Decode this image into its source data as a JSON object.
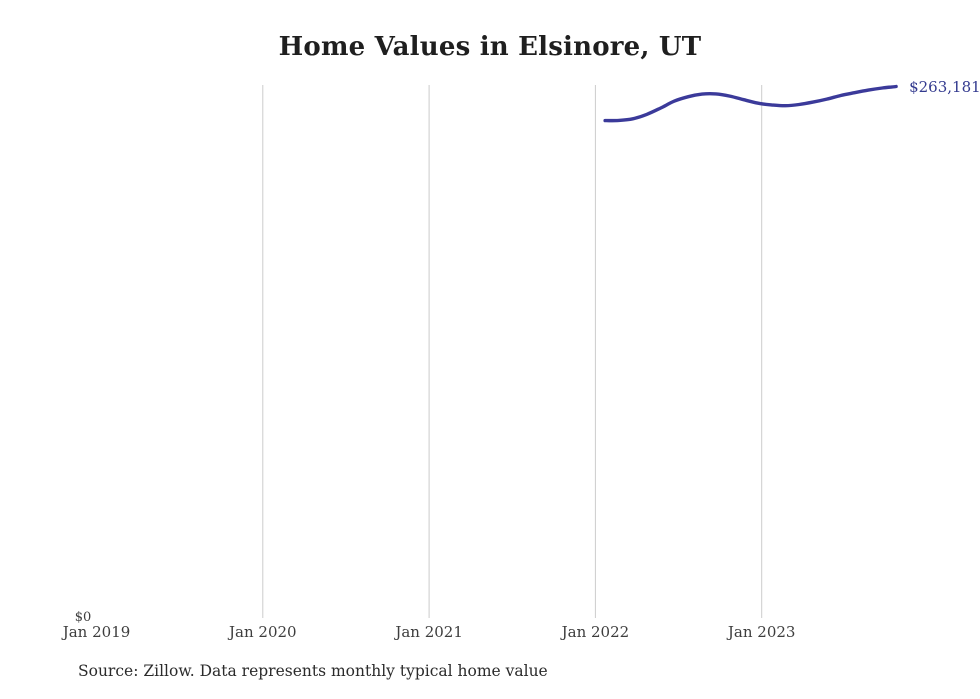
{
  "title": "Home Values in Elsinore, UT",
  "source_note": "Source: Zillow. Data represents monthly typical home value",
  "yaxis": {
    "zero_label": "$0"
  },
  "colors": {
    "line": "#3b3a9a",
    "end_label": "#333a8f",
    "gridline": "#cccccc",
    "title_text": "#1f1f1f",
    "tick_text": "#3d3d3d",
    "background": "#ffffff"
  },
  "chart_data": {
    "type": "line",
    "title": "Home Values in Elsinore, UT",
    "xlabel": "",
    "ylabel": "",
    "ylim": [
      0,
      263181
    ],
    "grid": "vertical-only",
    "legend": "none",
    "end_label": "$263,181",
    "x_ticks": [
      {
        "label": "Jan 2019",
        "grid": false
      },
      {
        "label": "Jan 2020",
        "grid": true
      },
      {
        "label": "Jan 2021",
        "grid": true
      },
      {
        "label": "Jan 2022",
        "grid": true
      },
      {
        "label": "Jan 2023",
        "grid": true
      }
    ],
    "series": [
      {
        "name": "Typical home value (monthly)",
        "points": [
          {
            "date": "2022-01",
            "value": 246200
          },
          {
            "date": "2022-02",
            "value": 246300
          },
          {
            "date": "2022-03",
            "value": 247100
          },
          {
            "date": "2022-04",
            "value": 249300
          },
          {
            "date": "2022-05",
            "value": 252400
          },
          {
            "date": "2022-06",
            "value": 255900
          },
          {
            "date": "2022-07",
            "value": 258100
          },
          {
            "date": "2022-08",
            "value": 259400
          },
          {
            "date": "2022-09",
            "value": 259500
          },
          {
            "date": "2022-10",
            "value": 258400
          },
          {
            "date": "2022-11",
            "value": 256600
          },
          {
            "date": "2022-12",
            "value": 254900
          },
          {
            "date": "2023-01",
            "value": 254000
          },
          {
            "date": "2023-02",
            "value": 253600
          },
          {
            "date": "2023-03",
            "value": 254200
          },
          {
            "date": "2023-04",
            "value": 255400
          },
          {
            "date": "2023-05",
            "value": 256900
          },
          {
            "date": "2023-06",
            "value": 258700
          },
          {
            "date": "2023-07",
            "value": 260100
          },
          {
            "date": "2023-08",
            "value": 261400
          },
          {
            "date": "2023-09",
            "value": 262400
          },
          {
            "date": "2023-10",
            "value": 263181
          }
        ]
      }
    ]
  }
}
